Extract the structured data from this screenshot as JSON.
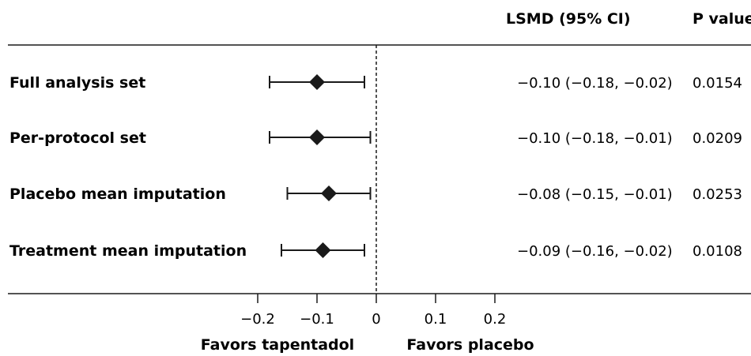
{
  "chart_data": {
    "type": "forest",
    "headers": {
      "estimate": "LSMD (95% CI)",
      "pvalue": "P value"
    },
    "rows": [
      {
        "label": "Full analysis set",
        "estimate": -0.1,
        "lower": -0.18,
        "upper": -0.02,
        "ci_text": "−0.10 (−0.18, −0.02)",
        "p": "0.0154"
      },
      {
        "label": "Per-protocol set",
        "estimate": -0.1,
        "lower": -0.18,
        "upper": -0.01,
        "ci_text": "−0.10 (−0.18, −0.01)",
        "p": "0.0209"
      },
      {
        "label": "Placebo mean imputation",
        "estimate": -0.08,
        "lower": -0.15,
        "upper": -0.01,
        "ci_text": "−0.08 (−0.15, −0.01)",
        "p": "0.0253"
      },
      {
        "label": "Treatment mean imputation",
        "estimate": -0.09,
        "lower": -0.16,
        "upper": -0.02,
        "ci_text": "−0.09 (−0.16, −0.02)",
        "p": "0.0108"
      }
    ],
    "x_ticks": [
      -0.2,
      -0.1,
      0,
      0.1,
      0.2
    ],
    "x_tick_labels": [
      "−0.2",
      "−0.1",
      "0",
      "0.1",
      "0.2"
    ],
    "xlim": [
      -0.2,
      0.2
    ],
    "reference_line": 0,
    "favors_left": "Favors tapentadol",
    "favors_right": "Favors placebo"
  }
}
